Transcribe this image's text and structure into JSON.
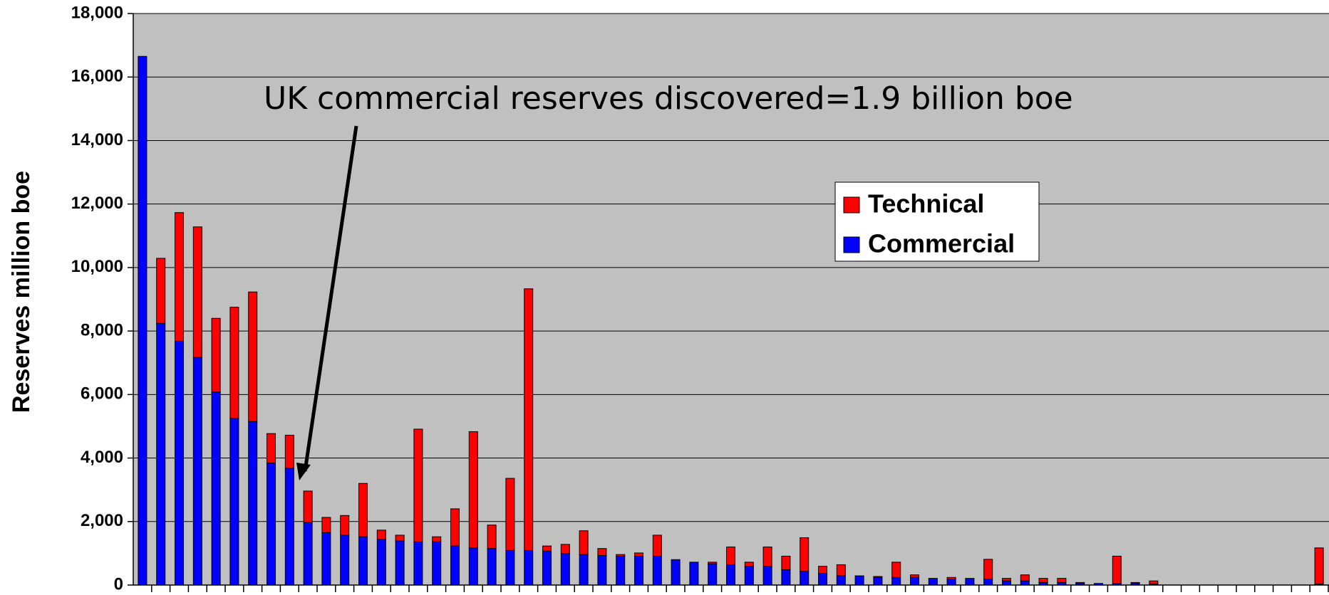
{
  "chart_data": {
    "type": "stacked_bar",
    "annotation": "UK commercial reserves discovered=1.9 billion boe",
    "y_label": "Reserves million boe",
    "categories": [
      null,
      null,
      null,
      null,
      null,
      null,
      null,
      null,
      null,
      null,
      null,
      null,
      null,
      null,
      null,
      null,
      null,
      null,
      null,
      null,
      null,
      null,
      null,
      null,
      null,
      null,
      null,
      null,
      null,
      null,
      null,
      null,
      null,
      null,
      null,
      null,
      null,
      null,
      null,
      null,
      null,
      null,
      null,
      null,
      null,
      null,
      null,
      null,
      null,
      null,
      null,
      null,
      null,
      null,
      null,
      null,
      null,
      null,
      null,
      null,
      null,
      null,
      null,
      null,
      null
    ],
    "series": [
      {
        "name": "Commercial",
        "color": "#0000ff",
        "values": [
          16650,
          8240,
          7680,
          7170,
          6080,
          5250,
          5150,
          3840,
          3680,
          1970,
          1650,
          1570,
          1520,
          1440,
          1390,
          1360,
          1360,
          1230,
          1170,
          1150,
          1090,
          1090,
          1070,
          990,
          960,
          930,
          910,
          910,
          910,
          800,
          720,
          670,
          640,
          590,
          590,
          480,
          430,
          370,
          290,
          290,
          240,
          240,
          240,
          210,
          190,
          210,
          190,
          130,
          130,
          80,
          80,
          50,
          50,
          50,
          50,
          30,
          0,
          0,
          0,
          0,
          0,
          0,
          0,
          0,
          30
        ]
      },
      {
        "name": "Technical",
        "color": "#ff0000",
        "values": [
          0,
          2050,
          4050,
          4110,
          2320,
          3500,
          4080,
          930,
          1040,
          990,
          480,
          620,
          1680,
          290,
          180,
          3550,
          160,
          1170,
          3660,
          740,
          2270,
          8240,
          160,
          290,
          750,
          220,
          50,
          100,
          660,
          0,
          0,
          50,
          560,
          130,
          610,
          430,
          1060,
          220,
          350,
          0,
          30,
          480,
          80,
          0,
          50,
          0,
          620,
          80,
          190,
          130,
          130,
          30,
          0,
          860,
          30,
          100,
          0,
          0,
          0,
          0,
          0,
          0,
          0,
          0,
          1140
        ]
      }
    ],
    "ylim": [
      0,
      18000
    ],
    "yticks": [
      0,
      {
        "value": 2000,
        "label": "2,000"
      },
      {
        "value": 4000,
        "label": "4,000"
      },
      {
        "value": 6000,
        "label": "6,000"
      },
      {
        "value": 8000,
        "label": "8,000"
      },
      {
        "value": 10000,
        "label": "10,000"
      },
      {
        "value": 12000,
        "label": "12,000"
      },
      {
        "value": 14000,
        "label": "14,000"
      },
      {
        "value": 16000,
        "label": "16,000"
      },
      {
        "value": 18000,
        "label": "18,000"
      }
    ],
    "grid": true,
    "background": "#c0c0c0"
  }
}
